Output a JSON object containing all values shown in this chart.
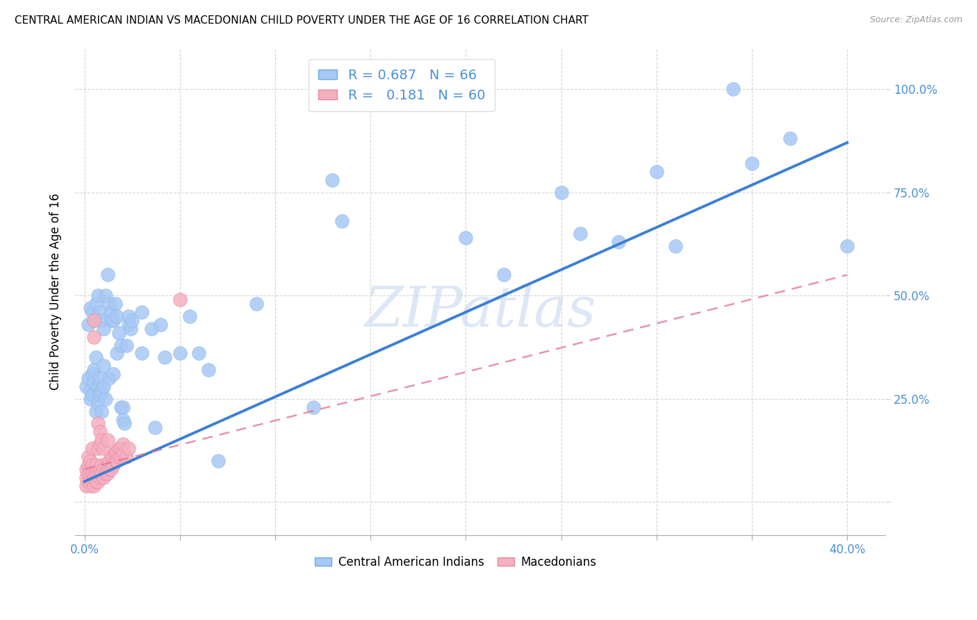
{
  "title": "CENTRAL AMERICAN INDIAN VS MACEDONIAN CHILD POVERTY UNDER THE AGE OF 16 CORRELATION CHART",
  "source": "Source: ZipAtlas.com",
  "ylabel": "Child Poverty Under the Age of 16",
  "yticks": [
    0.0,
    0.25,
    0.5,
    0.75,
    1.0
  ],
  "ytick_labels": [
    "",
    "25.0%",
    "50.0%",
    "75.0%",
    "100.0%"
  ],
  "xticks": [
    0.0,
    0.05,
    0.1,
    0.15,
    0.2,
    0.25,
    0.3,
    0.35,
    0.4
  ],
  "xlim": [
    -0.005,
    0.42
  ],
  "ylim": [
    -0.08,
    1.1
  ],
  "watermark": "ZIPatlas",
  "blue_scatter": [
    [
      0.001,
      0.28
    ],
    [
      0.002,
      0.3
    ],
    [
      0.002,
      0.43
    ],
    [
      0.003,
      0.25
    ],
    [
      0.003,
      0.27
    ],
    [
      0.003,
      0.47
    ],
    [
      0.004,
      0.31
    ],
    [
      0.004,
      0.26
    ],
    [
      0.004,
      0.46
    ],
    [
      0.005,
      0.29
    ],
    [
      0.005,
      0.32
    ],
    [
      0.005,
      0.44
    ],
    [
      0.006,
      0.22
    ],
    [
      0.006,
      0.35
    ],
    [
      0.006,
      0.48
    ],
    [
      0.007,
      0.24
    ],
    [
      0.007,
      0.28
    ],
    [
      0.007,
      0.5
    ],
    [
      0.008,
      0.26
    ],
    [
      0.008,
      0.3
    ],
    [
      0.008,
      0.46
    ],
    [
      0.009,
      0.27
    ],
    [
      0.009,
      0.22
    ],
    [
      0.009,
      0.44
    ],
    [
      0.01,
      0.33
    ],
    [
      0.01,
      0.28
    ],
    [
      0.01,
      0.42
    ],
    [
      0.011,
      0.25
    ],
    [
      0.011,
      0.5
    ],
    [
      0.012,
      0.55
    ],
    [
      0.013,
      0.48
    ],
    [
      0.013,
      0.3
    ],
    [
      0.014,
      0.44
    ],
    [
      0.014,
      0.46
    ],
    [
      0.015,
      0.31
    ],
    [
      0.015,
      0.44
    ],
    [
      0.016,
      0.48
    ],
    [
      0.017,
      0.36
    ],
    [
      0.017,
      0.45
    ],
    [
      0.018,
      0.41
    ],
    [
      0.019,
      0.38
    ],
    [
      0.019,
      0.23
    ],
    [
      0.02,
      0.2
    ],
    [
      0.02,
      0.23
    ],
    [
      0.021,
      0.19
    ],
    [
      0.022,
      0.38
    ],
    [
      0.023,
      0.43
    ],
    [
      0.023,
      0.45
    ],
    [
      0.024,
      0.42
    ],
    [
      0.025,
      0.44
    ],
    [
      0.03,
      0.46
    ],
    [
      0.03,
      0.36
    ],
    [
      0.035,
      0.42
    ],
    [
      0.037,
      0.18
    ],
    [
      0.04,
      0.43
    ],
    [
      0.042,
      0.35
    ],
    [
      0.05,
      0.36
    ],
    [
      0.055,
      0.45
    ],
    [
      0.06,
      0.36
    ],
    [
      0.065,
      0.32
    ],
    [
      0.07,
      0.1
    ],
    [
      0.09,
      0.48
    ],
    [
      0.12,
      0.23
    ],
    [
      0.13,
      0.78
    ],
    [
      0.135,
      0.68
    ],
    [
      0.2,
      0.64
    ],
    [
      0.22,
      0.55
    ],
    [
      0.25,
      0.75
    ],
    [
      0.26,
      0.65
    ],
    [
      0.28,
      0.63
    ],
    [
      0.3,
      0.8
    ],
    [
      0.31,
      0.62
    ],
    [
      0.34,
      1.0
    ],
    [
      0.35,
      0.82
    ],
    [
      0.37,
      0.88
    ],
    [
      0.4,
      0.62
    ]
  ],
  "pink_scatter": [
    [
      0.001,
      0.04
    ],
    [
      0.001,
      0.06
    ],
    [
      0.001,
      0.08
    ],
    [
      0.002,
      0.05
    ],
    [
      0.002,
      0.07
    ],
    [
      0.002,
      0.09
    ],
    [
      0.002,
      0.11
    ],
    [
      0.003,
      0.04
    ],
    [
      0.003,
      0.06
    ],
    [
      0.003,
      0.08
    ],
    [
      0.003,
      0.1
    ],
    [
      0.004,
      0.05
    ],
    [
      0.004,
      0.07
    ],
    [
      0.004,
      0.09
    ],
    [
      0.004,
      0.13
    ],
    [
      0.005,
      0.04
    ],
    [
      0.005,
      0.06
    ],
    [
      0.005,
      0.44
    ],
    [
      0.005,
      0.4
    ],
    [
      0.006,
      0.05
    ],
    [
      0.006,
      0.07
    ],
    [
      0.006,
      0.09
    ],
    [
      0.007,
      0.05
    ],
    [
      0.007,
      0.07
    ],
    [
      0.007,
      0.13
    ],
    [
      0.007,
      0.19
    ],
    [
      0.008,
      0.06
    ],
    [
      0.008,
      0.08
    ],
    [
      0.008,
      0.14
    ],
    [
      0.008,
      0.17
    ],
    [
      0.009,
      0.07
    ],
    [
      0.009,
      0.09
    ],
    [
      0.009,
      0.15
    ],
    [
      0.01,
      0.06
    ],
    [
      0.01,
      0.08
    ],
    [
      0.01,
      0.13
    ],
    [
      0.011,
      0.07
    ],
    [
      0.011,
      0.09
    ],
    [
      0.012,
      0.07
    ],
    [
      0.012,
      0.09
    ],
    [
      0.012,
      0.15
    ],
    [
      0.013,
      0.08
    ],
    [
      0.013,
      0.1
    ],
    [
      0.014,
      0.08
    ],
    [
      0.014,
      0.11
    ],
    [
      0.015,
      0.09
    ],
    [
      0.015,
      0.11
    ],
    [
      0.016,
      0.1
    ],
    [
      0.016,
      0.12
    ],
    [
      0.017,
      0.1
    ],
    [
      0.017,
      0.12
    ],
    [
      0.018,
      0.11
    ],
    [
      0.018,
      0.13
    ],
    [
      0.019,
      0.11
    ],
    [
      0.019,
      0.13
    ],
    [
      0.02,
      0.12
    ],
    [
      0.02,
      0.14
    ],
    [
      0.022,
      0.11
    ],
    [
      0.023,
      0.13
    ],
    [
      0.05,
      0.49
    ]
  ],
  "blue_line": {
    "x0": 0.0,
    "y0": 0.05,
    "x1": 0.4,
    "y1": 0.87
  },
  "pink_line": {
    "x0": 0.0,
    "y0": 0.08,
    "x1": 0.4,
    "y1": 0.55
  }
}
